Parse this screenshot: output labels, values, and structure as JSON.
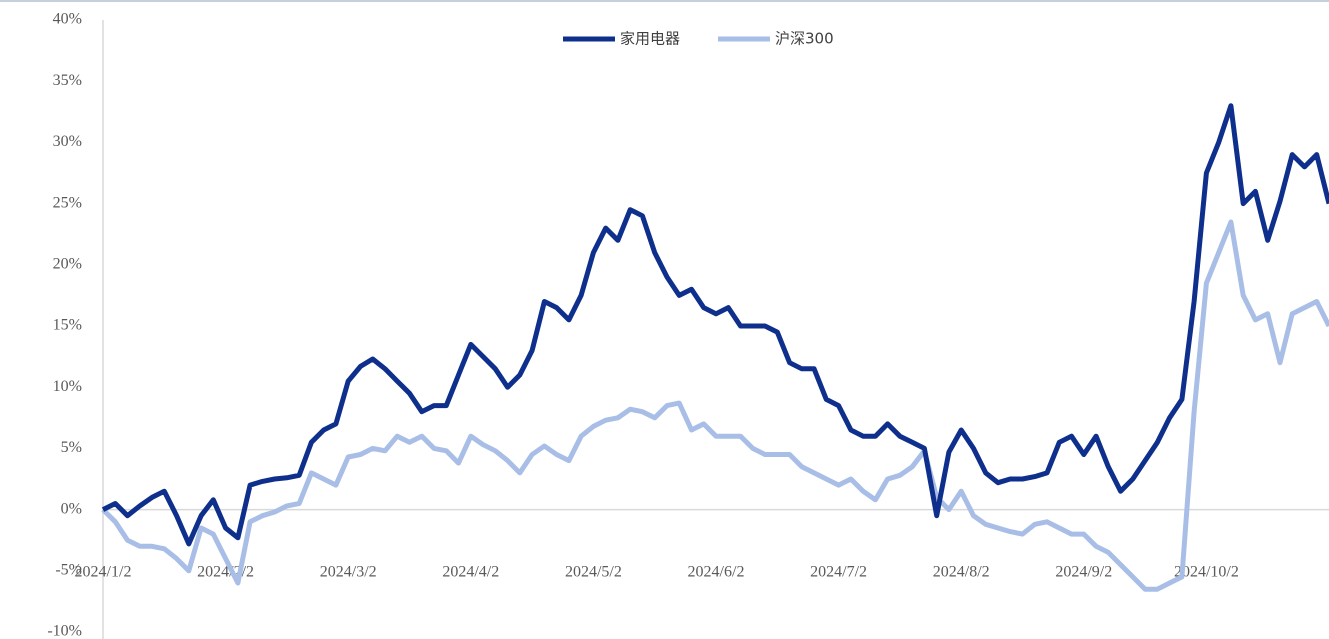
{
  "chart_data": {
    "type": "line",
    "categories": [
      "2024/1/2",
      null,
      null,
      null,
      null,
      null,
      null,
      null,
      null,
      null,
      "2024/2/2",
      null,
      null,
      null,
      null,
      null,
      null,
      null,
      null,
      null,
      "2024/3/2",
      null,
      null,
      null,
      null,
      null,
      null,
      null,
      null,
      null,
      "2024/4/2",
      null,
      null,
      null,
      null,
      null,
      null,
      null,
      null,
      null,
      "2024/5/2",
      null,
      null,
      null,
      null,
      null,
      null,
      null,
      null,
      null,
      "2024/6/2",
      null,
      null,
      null,
      null,
      null,
      null,
      null,
      null,
      null,
      "2024/7/2",
      null,
      null,
      null,
      null,
      null,
      null,
      null,
      null,
      null,
      "2024/8/2",
      null,
      null,
      null,
      null,
      null,
      null,
      null,
      null,
      null,
      "2024/9/2",
      null,
      null,
      null,
      null,
      null,
      null,
      null,
      null,
      null,
      "2024/10/2",
      null,
      null,
      null,
      null,
      null,
      null,
      null,
      null,
      null,
      null
    ],
    "series": [
      {
        "name": "家用电器",
        "color": "#0e2f8c",
        "values": [
          0,
          0.5,
          -0.5,
          0.3,
          1,
          1.5,
          -0.5,
          -2.8,
          -0.5,
          0.8,
          -1.5,
          -2.3,
          2,
          2.3,
          2.5,
          2.6,
          2.8,
          5.5,
          6.5,
          7,
          10.5,
          11.7,
          12.3,
          11.5,
          10.5,
          9.5,
          8,
          8.5,
          8.5,
          11,
          13.5,
          12.5,
          11.5,
          10,
          11,
          13,
          17,
          16.5,
          15.5,
          17.5,
          21,
          23,
          22,
          24.5,
          24,
          21,
          19,
          17.5,
          18,
          16.5,
          16,
          16.5,
          15,
          15,
          15,
          14.5,
          12,
          11.5,
          11.5,
          9,
          8.5,
          6.5,
          6,
          6,
          7,
          6,
          5.5,
          5,
          -0.5,
          4.7,
          6.5,
          5,
          3,
          2.2,
          2.5,
          2.5,
          2.7,
          3,
          5.5,
          6,
          4.5,
          6,
          3.5,
          1.5,
          2.5,
          4,
          5.5,
          7.5,
          9,
          17,
          27.5,
          30,
          33,
          25,
          26,
          22,
          25.2,
          29,
          28,
          29,
          25
        ]
      },
      {
        "name": "沪深300",
        "color": "#a9bee6",
        "values": [
          0,
          -1,
          -2.5,
          -3,
          -3,
          -3.2,
          -4,
          -5,
          -1.5,
          -2,
          -4,
          -6,
          -1,
          -0.5,
          -0.2,
          0.3,
          0.5,
          3,
          2.5,
          2,
          4.3,
          4.5,
          5,
          4.8,
          6,
          5.5,
          6,
          5,
          4.8,
          3.8,
          6,
          5.3,
          4.8,
          4,
          3,
          4.5,
          5.2,
          4.5,
          4,
          6,
          6.8,
          7.3,
          7.5,
          8.2,
          8,
          7.5,
          8.5,
          8.7,
          6.5,
          7,
          6,
          6,
          6,
          5,
          4.5,
          4.5,
          4.5,
          3.5,
          3,
          2.5,
          2,
          2.5,
          1.5,
          0.8,
          2.5,
          2.8,
          3.5,
          4.8,
          1,
          0,
          1.5,
          -0.5,
          -1.2,
          -1.5,
          -1.8,
          -2,
          -1.2,
          -1,
          -1.5,
          -2,
          -2,
          -3,
          -3.5,
          -4.5,
          -5.5,
          -6.5,
          -6.5,
          -6,
          -5.5,
          8,
          18.5,
          21,
          23.5,
          17.5,
          15.5,
          16,
          12,
          16,
          16.5,
          17,
          15
        ]
      }
    ],
    "ylim": [
      -10,
      40
    ],
    "yticks": [
      {
        "value": -10,
        "label": "-10%"
      },
      {
        "value": -5,
        "label": "-5%"
      },
      {
        "value": 0,
        "label": "0%"
      },
      {
        "value": 5,
        "label": "5%"
      },
      {
        "value": 10,
        "label": "10%"
      },
      {
        "value": 15,
        "label": "15%"
      },
      {
        "value": 20,
        "label": "20%"
      },
      {
        "value": 25,
        "label": "25%"
      },
      {
        "value": 30,
        "label": "30%"
      },
      {
        "value": 35,
        "label": "35%"
      },
      {
        "value": 40,
        "label": "40%"
      }
    ],
    "grid": false,
    "legend": "top"
  }
}
